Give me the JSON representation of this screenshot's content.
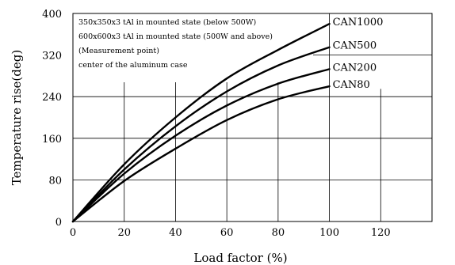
{
  "chart_data": {
    "type": "line",
    "xlabel": "Load factor (%)",
    "ylabel": "Temperature rise(deg)",
    "xlim": [
      0,
      140
    ],
    "ylim": [
      0,
      400
    ],
    "xticks": [
      "0",
      "20",
      "40",
      "60",
      "80",
      "100",
      "120"
    ],
    "yticks": [
      "0",
      "80",
      "160",
      "240",
      "320",
      "400"
    ],
    "grid": true,
    "annotations": [
      "350x350x3 tAl in mounted state (below 500W)",
      "600x600x3 tAl in mounted state (500W and above)",
      "(Measurement point)",
      "center of the aluminum case"
    ],
    "series": [
      {
        "name": "CAN1000",
        "x": [
          0,
          20,
          40,
          60,
          80,
          100
        ],
        "y": [
          0,
          110,
          200,
          275,
          330,
          380
        ]
      },
      {
        "name": "CAN500",
        "x": [
          0,
          20,
          40,
          60,
          80,
          100
        ],
        "y": [
          0,
          100,
          183,
          250,
          300,
          335
        ]
      },
      {
        "name": "CAN200",
        "x": [
          0,
          20,
          40,
          60,
          80,
          100
        ],
        "y": [
          0,
          92,
          165,
          223,
          265,
          293
        ]
      },
      {
        "name": "CAN80",
        "x": [
          0,
          20,
          40,
          60,
          80,
          100
        ],
        "y": [
          0,
          78,
          140,
          195,
          235,
          260
        ]
      }
    ]
  }
}
